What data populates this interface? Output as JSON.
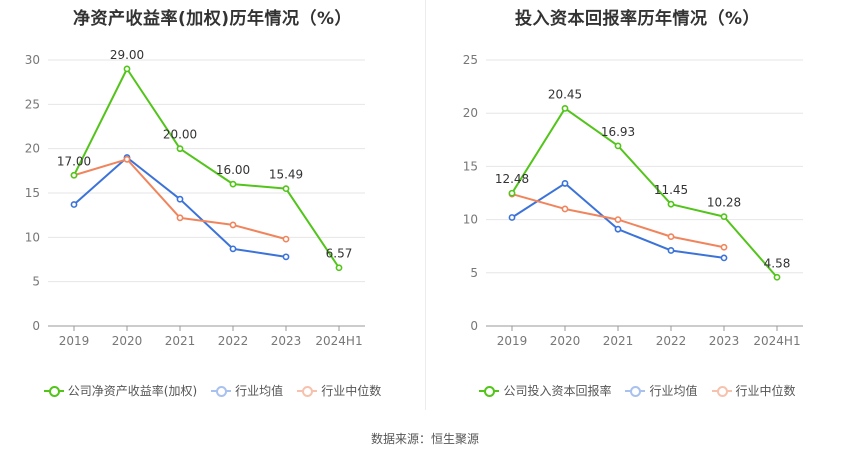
{
  "footer": "数据来源：恒生聚源",
  "chart_data": [
    {
      "type": "line",
      "title": "净资产收益率(加权)历年情况（%）",
      "categories": [
        "2019",
        "2020",
        "2021",
        "2022",
        "2023",
        "2024H1"
      ],
      "ylim": [
        0,
        30
      ],
      "yticks": [
        0,
        5,
        10,
        15,
        20,
        25,
        30
      ],
      "grid": true,
      "legend_position": "bottom",
      "series": [
        {
          "name": "公司净资产收益率(加权)",
          "color": "#52c41a",
          "values": [
            17.0,
            29.0,
            20.0,
            16.0,
            15.49,
            6.57
          ],
          "labels": [
            "17.00",
            "29.00",
            "20.00",
            "16.00",
            "15.49",
            "6.57"
          ],
          "style": "line"
        },
        {
          "name": "行业均值",
          "color": "#3b73d9",
          "values": [
            13.7,
            19.0,
            14.3,
            8.7,
            7.8,
            null
          ]
        },
        {
          "name": "行业中位数",
          "color": "#f0855d",
          "values": [
            17.0,
            18.8,
            12.2,
            11.4,
            9.8,
            null
          ]
        }
      ]
    },
    {
      "type": "line",
      "title": "投入资本回报率历年情况（%）",
      "categories": [
        "2019",
        "2020",
        "2021",
        "2022",
        "2023",
        "2024H1"
      ],
      "ylim": [
        0,
        25
      ],
      "yticks": [
        0,
        5,
        10,
        15,
        20,
        25
      ],
      "grid": true,
      "legend_position": "bottom",
      "series": [
        {
          "name": "公司投入资本回报率",
          "color": "#52c41a",
          "values": [
            12.48,
            20.45,
            16.93,
            11.45,
            10.28,
            4.58
          ],
          "labels": [
            "12.48",
            "20.45",
            "16.93",
            "11.45",
            "10.28",
            "4.58"
          ],
          "style": "line"
        },
        {
          "name": "行业均值",
          "color": "#3b73d9",
          "values": [
            10.2,
            13.4,
            9.1,
            7.1,
            6.4,
            null
          ]
        },
        {
          "name": "行业中位数",
          "color": "#f0855d",
          "values": [
            12.4,
            11.0,
            10.0,
            8.4,
            7.4,
            null
          ]
        }
      ]
    }
  ]
}
